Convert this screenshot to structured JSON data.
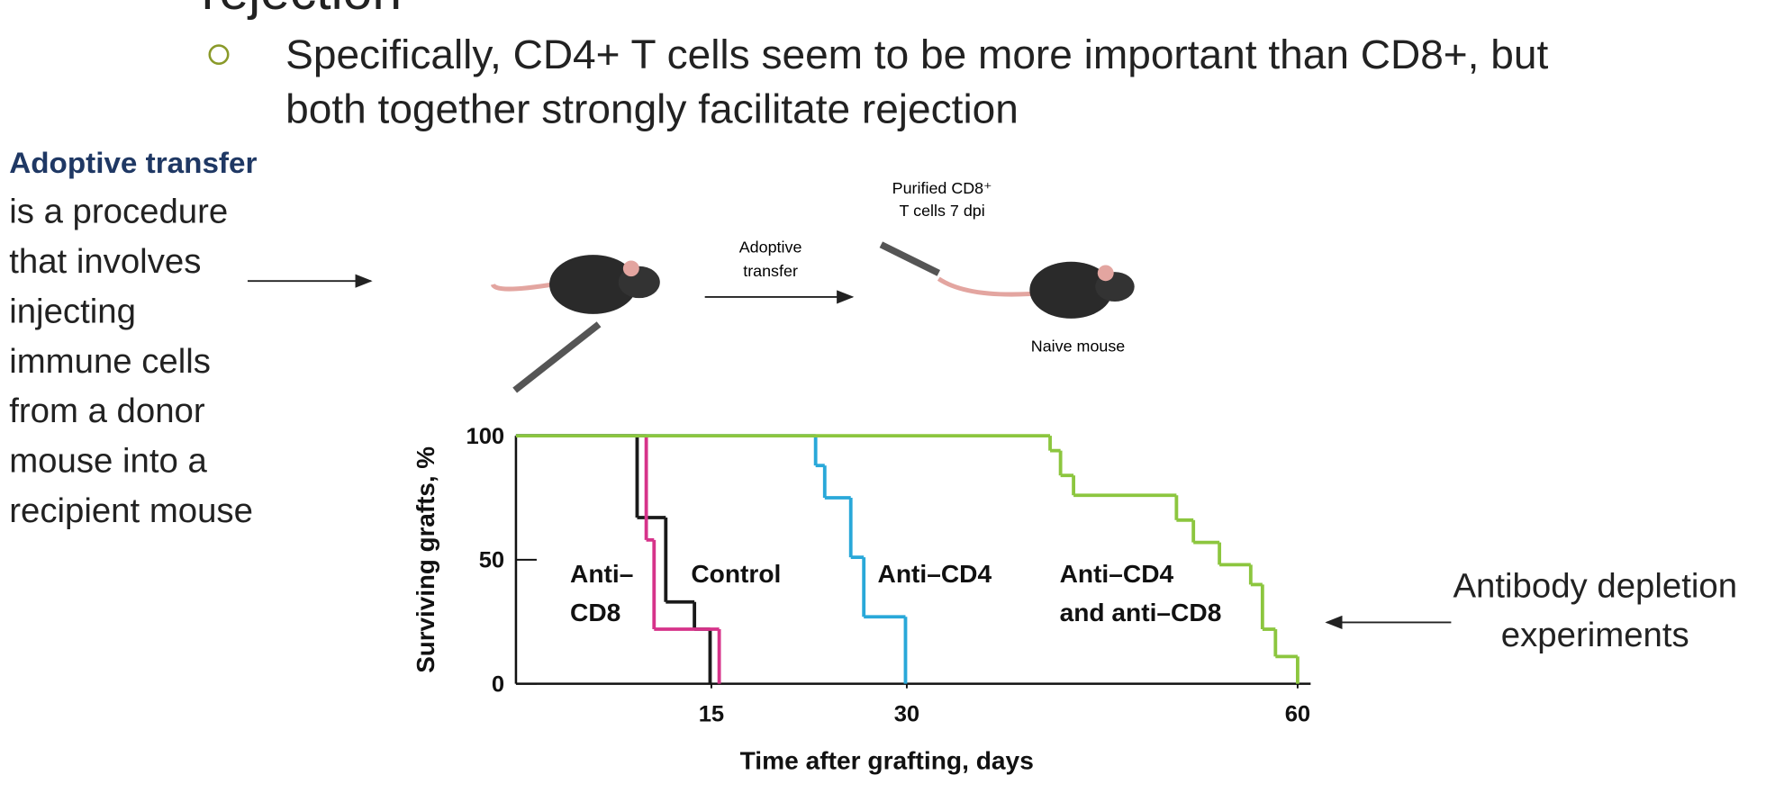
{
  "slide": {
    "heading": "rejection",
    "bullet_lines": [
      "Specifically, CD4+ T cells seem to be more important than CD8+, but",
      "both together strongly facilitate rejection"
    ],
    "left_title": "Adoptive transfer",
    "left_lines": [
      "is a procedure",
      "that involves",
      "injecting",
      "immune cells",
      "from a donor",
      "mouse into a",
      "recipient mouse"
    ],
    "right_lines": [
      "Antibody depletion",
      "experiments"
    ],
    "diagram": {
      "cells_label": [
        "Purified CD8⁺",
        "T cells 7 dpi"
      ],
      "arrow_label": [
        "Adoptive",
        "transfer"
      ],
      "mouse_label": "Naive mouse"
    }
  },
  "chart_data": {
    "type": "step",
    "xlabel": "Time after grafting, days",
    "ylabel": "Surviving grafts, %",
    "xlim": [
      0,
      61
    ],
    "ylim": [
      0,
      100
    ],
    "xticks": [
      15,
      30,
      60
    ],
    "yticks": [
      0,
      50,
      100
    ],
    "series": [
      {
        "name": "Control",
        "color": "#1a1a1a",
        "x": [
          0,
          9.3,
          11.5,
          13.7,
          14.9
        ],
        "values": [
          100,
          67,
          33,
          22,
          0
        ]
      },
      {
        "name": "Anti-CD8",
        "color": "#d6338a",
        "x": [
          0,
          10,
          10.6,
          15.6
        ],
        "values": [
          100,
          58,
          22,
          0
        ]
      },
      {
        "name": "Anti-CD4",
        "color": "#29a8d9",
        "x": [
          0,
          23,
          23.7,
          25.7,
          26.7,
          29.9
        ],
        "values": [
          100,
          88,
          75,
          51,
          27,
          0
        ]
      },
      {
        "name": "Anti-CD4 and anti-CD8",
        "color": "#8cc63f",
        "x": [
          0,
          41,
          41.8,
          42.8,
          50.7,
          52,
          54,
          56.4,
          57.3,
          58.3,
          60
        ],
        "values": [
          100,
          94,
          84,
          76,
          66,
          57,
          48,
          40,
          22,
          11,
          0
        ]
      }
    ],
    "annotations": [
      {
        "lines": [
          "Anti–",
          "CD8"
        ]
      },
      {
        "lines": [
          "Control"
        ]
      },
      {
        "lines": [
          "Anti–CD4"
        ]
      },
      {
        "lines": [
          "Anti–CD4",
          "and anti–CD8"
        ]
      }
    ]
  }
}
